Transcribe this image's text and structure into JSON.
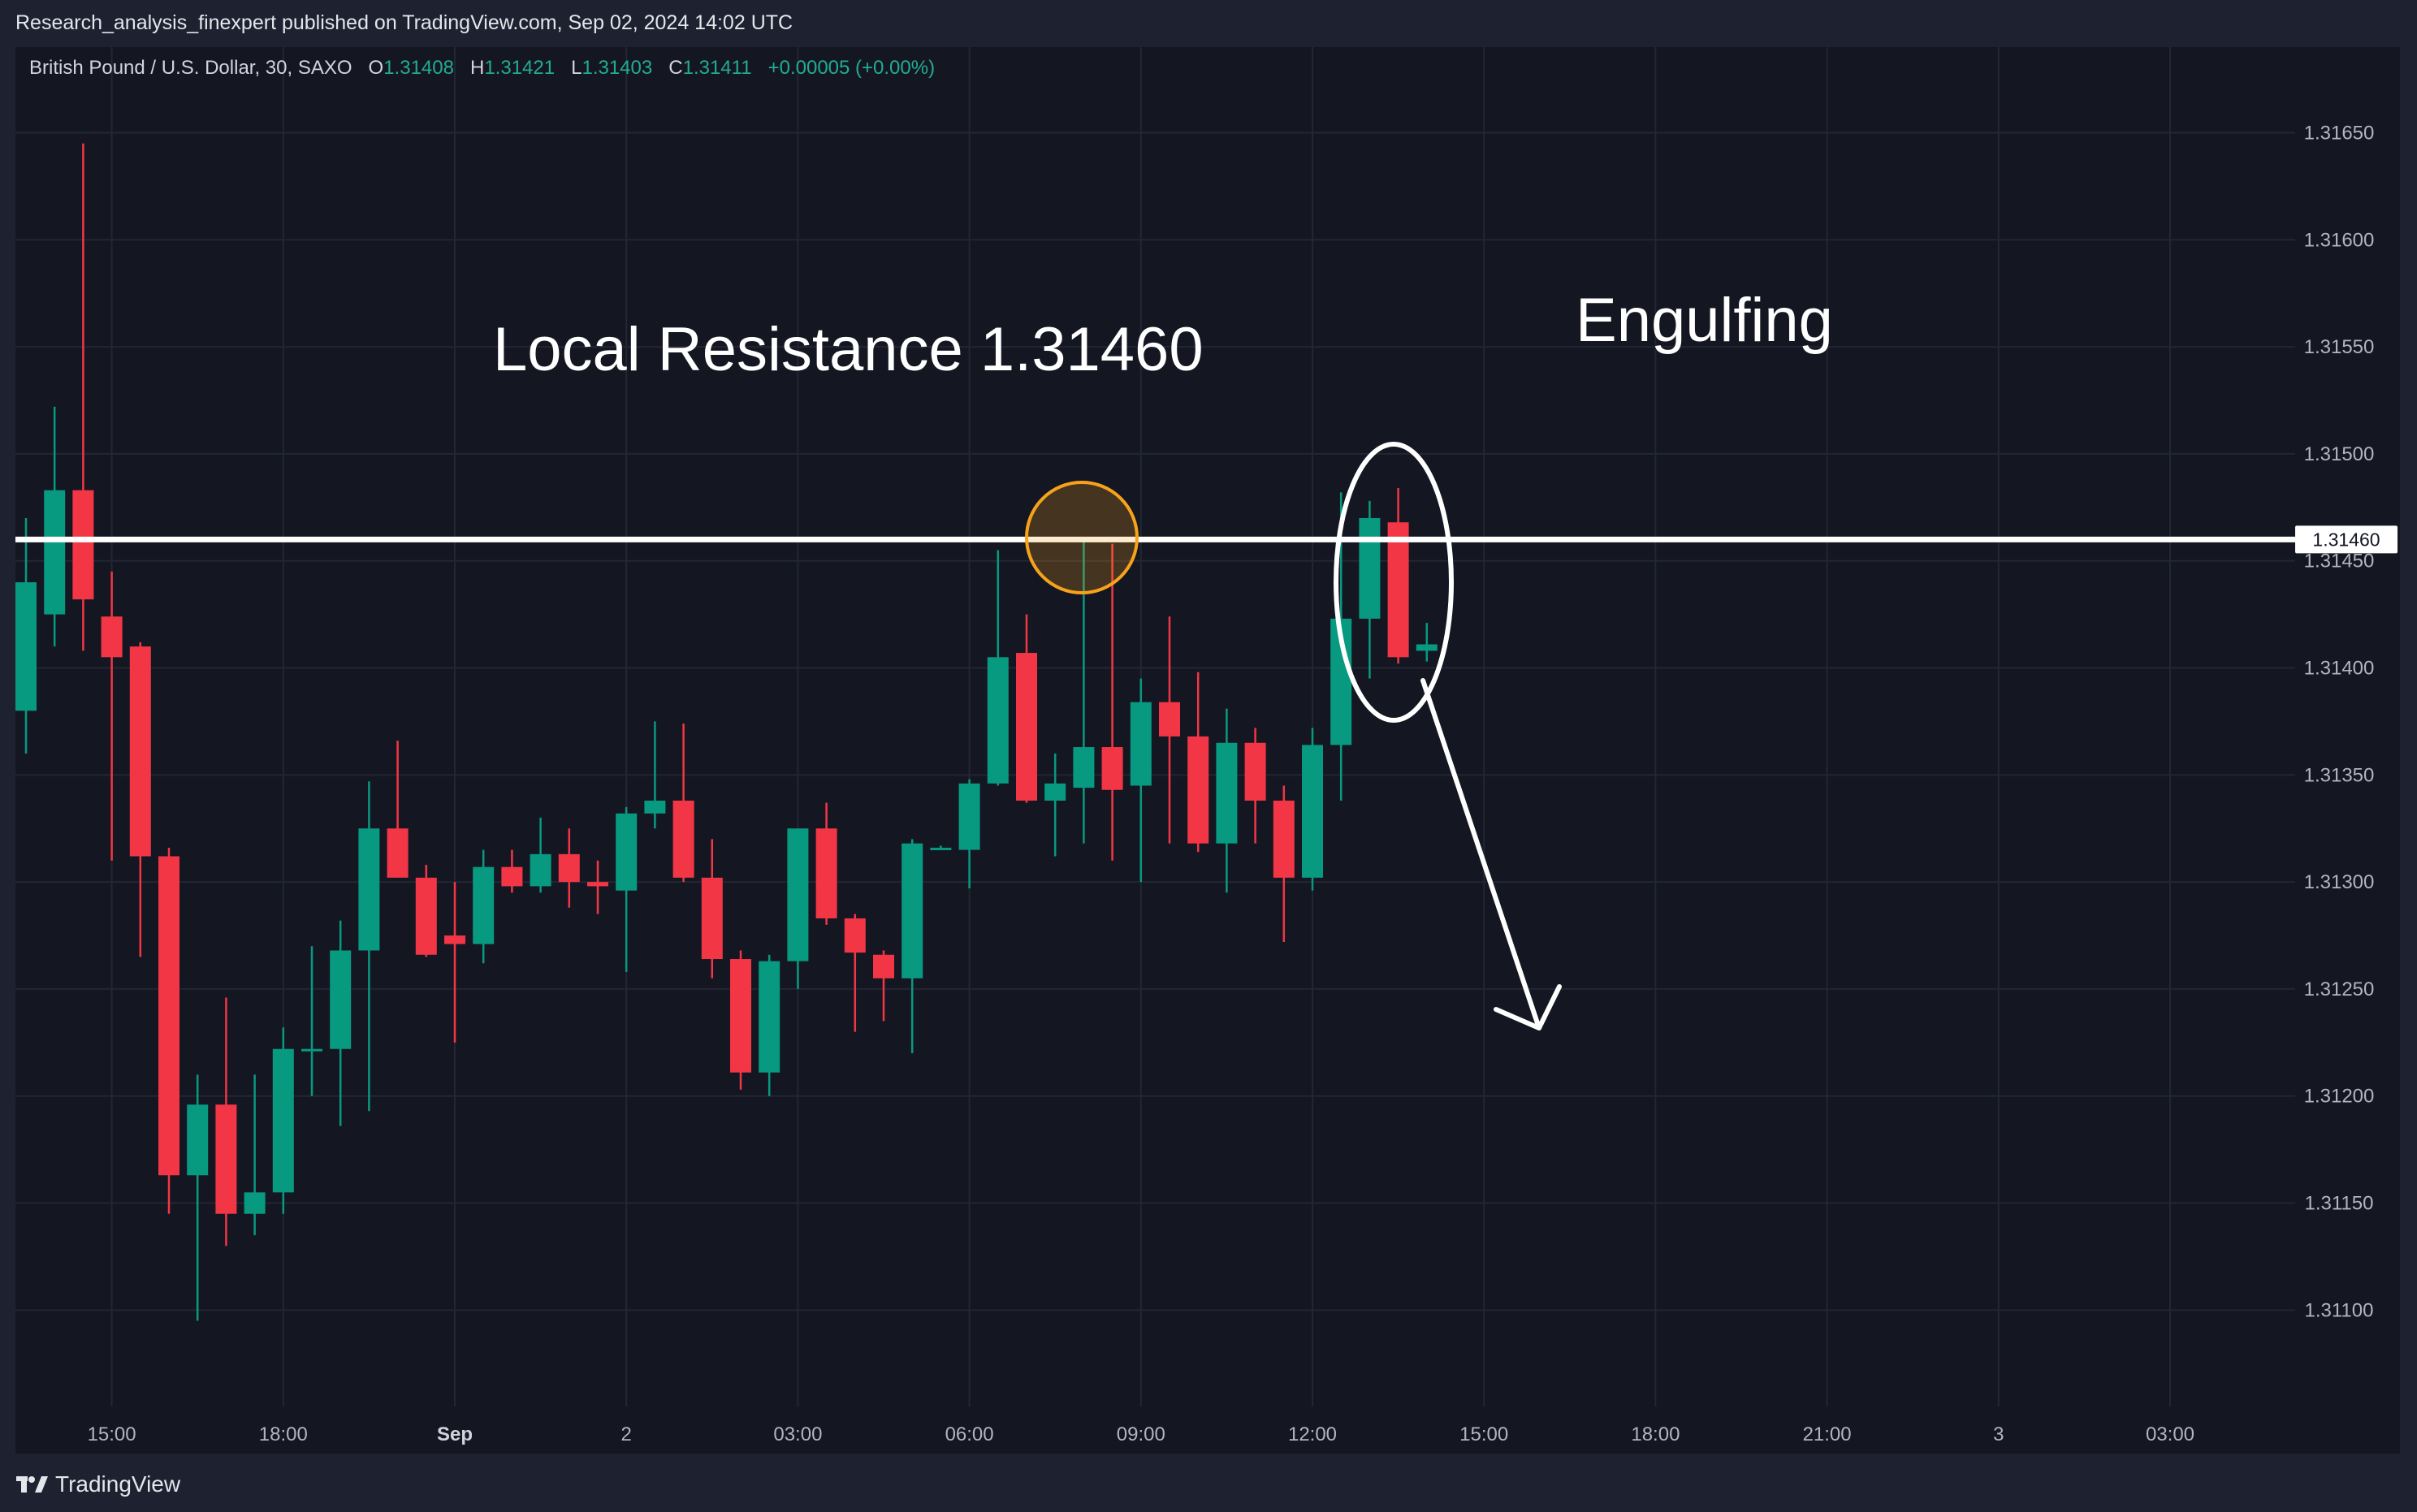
{
  "header": {
    "publisher": "Research_analysis_finexpert published on TradingView.com, Sep 02, 2024 14:02 UTC"
  },
  "legend": {
    "symbol": "British Pound / U.S. Dollar, 30, SAXO",
    "o_label": "O",
    "o_value": "1.31408",
    "h_label": "H",
    "h_value": "1.31421",
    "l_label": "L",
    "l_value": "1.31403",
    "c_label": "C",
    "c_value": "1.31411",
    "change": "+0.00005 (+0.00%)"
  },
  "footer": {
    "brand": "TradingView"
  },
  "colors": {
    "up": "#089981",
    "down": "#f23645",
    "background": "#141722",
    "grid": "#232633",
    "axis_text": "#b2b5be",
    "annotation": "#ffffff",
    "highlight": "#f7a21b"
  },
  "chart_data": {
    "type": "candlestick",
    "title": "",
    "ylim": [
      1.31055,
      1.3169
    ],
    "grid": true,
    "y_ticks": [
      {
        "value": 1.3165,
        "label": "1.31650"
      },
      {
        "value": 1.316,
        "label": "1.31600"
      },
      {
        "value": 1.3155,
        "label": "1.31550"
      },
      {
        "value": 1.315,
        "label": "1.31500"
      },
      {
        "value": 1.3145,
        "label": "1.31450"
      },
      {
        "value": 1.314,
        "label": "1.31400"
      },
      {
        "value": 1.3135,
        "label": "1.31350"
      },
      {
        "value": 1.313,
        "label": "1.31300"
      },
      {
        "value": 1.3125,
        "label": "1.31250"
      },
      {
        "value": 1.312,
        "label": "1.31200"
      },
      {
        "value": 1.3115,
        "label": "1.31150"
      },
      {
        "value": 1.311,
        "label": "1.31100"
      }
    ],
    "x_ticks": [
      {
        "index": 3,
        "label": "15:00",
        "bold": false
      },
      {
        "index": 9,
        "label": "18:00",
        "bold": false
      },
      {
        "index": 15,
        "label": "Sep",
        "bold": true
      },
      {
        "index": 21,
        "label": "2",
        "bold": false
      },
      {
        "index": 27,
        "label": "03:00",
        "bold": false
      },
      {
        "index": 33,
        "label": "06:00",
        "bold": false
      },
      {
        "index": 39,
        "label": "09:00",
        "bold": false
      },
      {
        "index": 45,
        "label": "12:00",
        "bold": false
      },
      {
        "index": 51,
        "label": "15:00",
        "bold": false
      },
      {
        "index": 57,
        "label": "18:00",
        "bold": false
      },
      {
        "index": 63,
        "label": "21:00",
        "bold": false
      },
      {
        "index": 69,
        "label": "3",
        "bold": false
      },
      {
        "index": 75,
        "label": "03:00",
        "bold": false
      }
    ],
    "candles": [
      {
        "o": 1.3138,
        "h": 1.3147,
        "l": 1.3136,
        "c": 1.3144
      },
      {
        "o": 1.31425,
        "h": 1.31522,
        "l": 1.3141,
        "c": 1.31483
      },
      {
        "o": 1.31483,
        "h": 1.31645,
        "l": 1.31408,
        "c": 1.31432
      },
      {
        "o": 1.31424,
        "h": 1.31445,
        "l": 1.3131,
        "c": 1.31405
      },
      {
        "o": 1.3141,
        "h": 1.31412,
        "l": 1.31265,
        "c": 1.31312
      },
      {
        "o": 1.31312,
        "h": 1.31316,
        "l": 1.31145,
        "c": 1.31163
      },
      {
        "o": 1.31163,
        "h": 1.3121,
        "l": 1.31095,
        "c": 1.31196
      },
      {
        "o": 1.31196,
        "h": 1.31246,
        "l": 1.3113,
        "c": 1.31145
      },
      {
        "o": 1.31145,
        "h": 1.3121,
        "l": 1.31135,
        "c": 1.31155
      },
      {
        "o": 1.31155,
        "h": 1.31232,
        "l": 1.31145,
        "c": 1.31222
      },
      {
        "o": 1.31222,
        "h": 1.3127,
        "l": 1.312,
        "c": 1.31222
      },
      {
        "o": 1.31222,
        "h": 1.31282,
        "l": 1.31186,
        "c": 1.31268
      },
      {
        "o": 1.31268,
        "h": 1.31347,
        "l": 1.31193,
        "c": 1.31325
      },
      {
        "o": 1.31325,
        "h": 1.31366,
        "l": 1.31302,
        "c": 1.31302
      },
      {
        "o": 1.31302,
        "h": 1.31308,
        "l": 1.31265,
        "c": 1.31266
      },
      {
        "o": 1.31275,
        "h": 1.313,
        "l": 1.31225,
        "c": 1.31271
      },
      {
        "o": 1.31271,
        "h": 1.31315,
        "l": 1.31262,
        "c": 1.31307
      },
      {
        "o": 1.31307,
        "h": 1.31315,
        "l": 1.31295,
        "c": 1.31298
      },
      {
        "o": 1.31298,
        "h": 1.3133,
        "l": 1.31295,
        "c": 1.31313
      },
      {
        "o": 1.31313,
        "h": 1.31325,
        "l": 1.31288,
        "c": 1.313
      },
      {
        "o": 1.313,
        "h": 1.3131,
        "l": 1.31285,
        "c": 1.31298
      },
      {
        "o": 1.31296,
        "h": 1.31335,
        "l": 1.31258,
        "c": 1.31332
      },
      {
        "o": 1.31332,
        "h": 1.31375,
        "l": 1.31325,
        "c": 1.31338
      },
      {
        "o": 1.31338,
        "h": 1.31374,
        "l": 1.313,
        "c": 1.31302
      },
      {
        "o": 1.31302,
        "h": 1.3132,
        "l": 1.31255,
        "c": 1.31264
      },
      {
        "o": 1.31264,
        "h": 1.31268,
        "l": 1.31203,
        "c": 1.31211
      },
      {
        "o": 1.31211,
        "h": 1.31266,
        "l": 1.312,
        "c": 1.31263
      },
      {
        "o": 1.31263,
        "h": 1.31325,
        "l": 1.3125,
        "c": 1.31325
      },
      {
        "o": 1.31325,
        "h": 1.31337,
        "l": 1.3128,
        "c": 1.31283
      },
      {
        "o": 1.31283,
        "h": 1.31285,
        "l": 1.3123,
        "c": 1.31267
      },
      {
        "o": 1.31266,
        "h": 1.31268,
        "l": 1.31235,
        "c": 1.31255
      },
      {
        "o": 1.31255,
        "h": 1.3132,
        "l": 1.3122,
        "c": 1.31318
      },
      {
        "o": 1.31316,
        "h": 1.31317,
        "l": 1.31315,
        "c": 1.31316
      },
      {
        "o": 1.31315,
        "h": 1.31348,
        "l": 1.31297,
        "c": 1.31346
      },
      {
        "o": 1.31346,
        "h": 1.31455,
        "l": 1.31345,
        "c": 1.31405
      },
      {
        "o": 1.31407,
        "h": 1.31425,
        "l": 1.31337,
        "c": 1.31338
      },
      {
        "o": 1.31338,
        "h": 1.3136,
        "l": 1.31312,
        "c": 1.31346
      },
      {
        "o": 1.31344,
        "h": 1.3146,
        "l": 1.31318,
        "c": 1.31363
      },
      {
        "o": 1.31363,
        "h": 1.31458,
        "l": 1.3131,
        "c": 1.31343
      },
      {
        "o": 1.31345,
        "h": 1.31395,
        "l": 1.313,
        "c": 1.31384
      },
      {
        "o": 1.31384,
        "h": 1.31424,
        "l": 1.31318,
        "c": 1.31368
      },
      {
        "o": 1.31368,
        "h": 1.31398,
        "l": 1.31314,
        "c": 1.31318
      },
      {
        "o": 1.31318,
        "h": 1.31381,
        "l": 1.31295,
        "c": 1.31365
      },
      {
        "o": 1.31365,
        "h": 1.31372,
        "l": 1.31318,
        "c": 1.31338
      },
      {
        "o": 1.31338,
        "h": 1.31345,
        "l": 1.31272,
        "c": 1.31302
      },
      {
        "o": 1.31302,
        "h": 1.31372,
        "l": 1.31296,
        "c": 1.31364
      },
      {
        "o": 1.31364,
        "h": 1.31482,
        "l": 1.31338,
        "c": 1.31423
      },
      {
        "o": 1.31423,
        "h": 1.31478,
        "l": 1.31395,
        "c": 1.3147
      },
      {
        "o": 1.31468,
        "h": 1.31484,
        "l": 1.31402,
        "c": 1.31405
      },
      {
        "o": 1.31408,
        "h": 1.31421,
        "l": 1.31403,
        "c": 1.31411
      }
    ],
    "price_line": {
      "value": 1.3146,
      "label": "1.31460"
    },
    "annotations": {
      "resistance_text": "Local Resistance 1.31460",
      "pattern_text": "Engulfing"
    }
  }
}
